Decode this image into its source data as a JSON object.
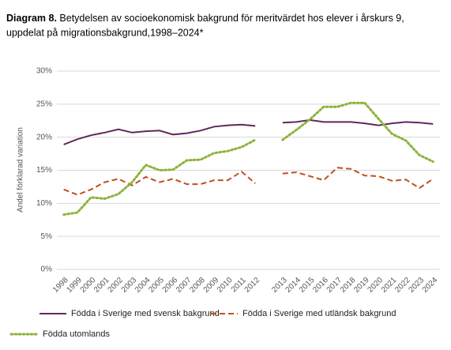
{
  "chart_data": {
    "type": "line",
    "title_prefix": "Diagram 8.",
    "title": [
      "Betydelsen av socioekonomisk bakgrund för meritvärdet hos elever i årskurs 9,",
      "uppdelat på migrationsbakgrund,1998–2024*"
    ],
    "y_label": "Andel förklarad variation",
    "categories": [
      "1998",
      "1999",
      "2000",
      "2001",
      "2002",
      "2003",
      "2004",
      "2005",
      "2006",
      "2007",
      "2008",
      "2009",
      "2010",
      "2011",
      "2012",
      null,
      "2013",
      "2014",
      "2015",
      "2016",
      "2017",
      "2018",
      "2019",
      "2020",
      "2021",
      "2022",
      "2023",
      "2024"
    ],
    "series": [
      {
        "name": "Födda i Sverige med svensk bakgrund",
        "color": "#5e2a5c",
        "dash": "solid",
        "values": [
          18.9,
          19.7,
          20.3,
          20.7,
          21.2,
          20.7,
          20.9,
          21.0,
          20.4,
          20.6,
          21.0,
          21.6,
          21.8,
          21.9,
          21.7,
          null,
          22.2,
          22.3,
          22.6,
          22.3,
          22.3,
          22.3,
          22.1,
          21.8,
          22.1,
          22.3,
          22.2,
          22.0
        ]
      },
      {
        "name": "Födda i Sverige med utländsk bakgrund",
        "color": "#c0501f",
        "dash": "dashed",
        "values": [
          12.1,
          11.3,
          12.1,
          13.2,
          13.7,
          12.7,
          14.0,
          13.2,
          13.7,
          12.9,
          12.9,
          13.5,
          13.5,
          14.8,
          13.0,
          null,
          14.5,
          14.7,
          14.1,
          13.5,
          15.4,
          15.2,
          14.2,
          14.1,
          13.4,
          13.6,
          12.3,
          13.7
        ]
      },
      {
        "name": "Födda utomlands",
        "color": "#8db33c",
        "dash": "dotted",
        "values": [
          8.3,
          8.6,
          10.9,
          10.7,
          11.4,
          13.2,
          15.8,
          15.0,
          15.1,
          16.5,
          16.6,
          17.6,
          17.9,
          18.5,
          19.6,
          null,
          19.6,
          21.1,
          22.7,
          24.6,
          24.6,
          25.2,
          25.2,
          22.8,
          20.5,
          19.5,
          17.3,
          16.3
        ]
      }
    ],
    "ylim": [
      0,
      30
    ],
    "yticks": [
      {
        "value": 0,
        "label": "0%"
      },
      {
        "value": 5,
        "label": "5%"
      },
      {
        "value": 10,
        "label": "10%"
      },
      {
        "value": 15,
        "label": "15%"
      },
      {
        "value": 20,
        "label": "20%"
      },
      {
        "value": 25,
        "label": "25%"
      },
      {
        "value": 30,
        "label": "30%"
      }
    ],
    "grid": true
  }
}
